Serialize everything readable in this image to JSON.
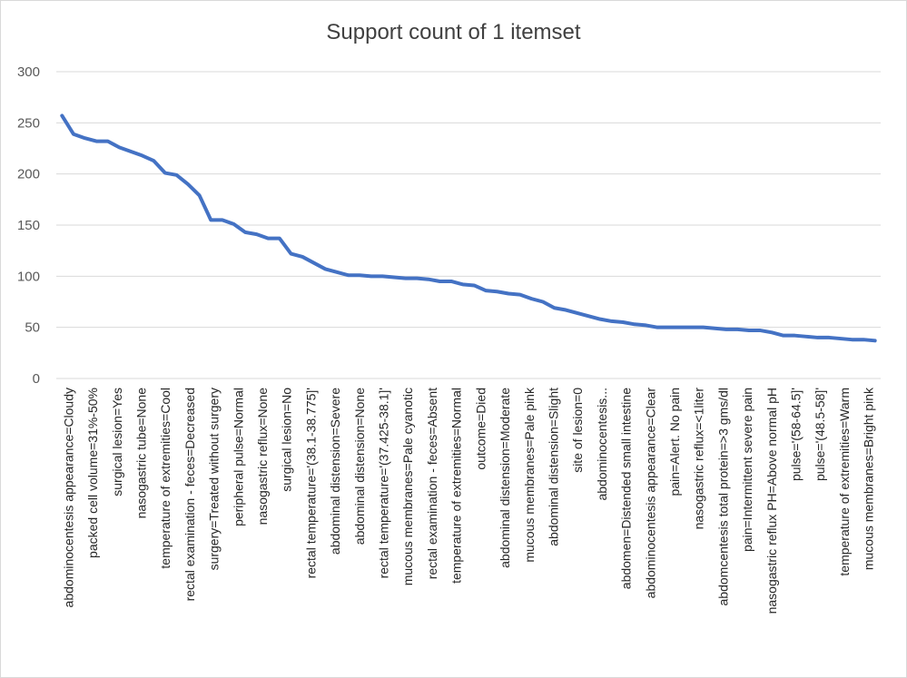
{
  "chart_data": {
    "type": "line",
    "title": "Support count of 1 itemset",
    "xlabel": "",
    "ylabel": "",
    "ylim": [
      0,
      300
    ],
    "yticks": [
      0,
      50,
      100,
      150,
      200,
      250,
      300
    ],
    "grid": true,
    "legend": "none",
    "color": "#4472C4",
    "x_tick_labels": [
      "abdominocentesis appearance=Cloudy",
      "packed cell volume=31%-50%",
      "surgical lesion=Yes",
      "nasogastric tube=None",
      "temperature of extremities=Cool",
      "rectal examination - feces=Decreased",
      "surgery=Treated without surgery",
      "peripheral pulse=Normal",
      "nasogastric reflux=None",
      "surgical lesion=No",
      "rectal temperature='(38.1-38.775]'",
      "abdominal distension=Severe",
      "abdominal distension=None",
      "rectal temperature='(37.425-38.1]'",
      "mucous membranes=Pale cyanotic",
      "rectal examination - feces=Absent",
      "temperature of extremities=Normal",
      "outcome=Died",
      "abdominal distension=Moderate",
      "mucous membranes=Pale pink",
      "abdominal distension=Slight",
      "site of lesion=0",
      "abdominocentesis...",
      "abdomen=Distended small intestine",
      "abdominocentesis appearance=Clear",
      "pain=Alert. No pain",
      "nasogastric reflux=<1liter",
      "abdomcentesis total protein=>3 gms/dl",
      "pain=Intermittent severe pain",
      "nasogastric reflux PH=Above normal pH",
      "pulse='(58-64.5]'",
      "pulse='(48.5-58]'",
      "temperature of extremities=Warm",
      "mucous membranes=Bright pink"
    ],
    "series": [
      {
        "values": [
          257,
          239,
          235,
          232,
          232,
          226,
          222,
          218,
          213,
          201,
          199,
          190,
          179,
          155,
          155,
          151,
          143,
          141,
          137,
          137,
          122,
          119,
          113,
          107,
          104,
          101,
          101,
          100,
          100,
          99,
          98,
          98,
          97,
          95,
          95,
          92,
          91,
          86,
          85,
          83,
          82,
          78,
          75,
          69,
          67,
          64,
          61,
          58,
          56,
          55,
          53,
          52,
          50,
          50,
          50,
          50,
          50,
          49,
          48,
          48,
          47,
          47,
          45,
          42,
          42,
          41,
          40,
          40,
          39,
          38,
          38,
          37
        ]
      }
    ]
  }
}
